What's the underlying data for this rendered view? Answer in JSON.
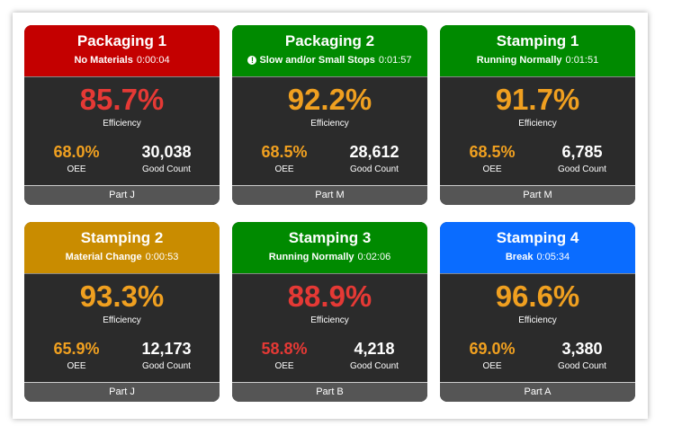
{
  "labels": {
    "efficiency": "Efficiency",
    "oee": "OEE",
    "good_count": "Good Count"
  },
  "cards": [
    {
      "title": "Packaging 1",
      "status": "No Materials",
      "time": "0:00:04",
      "efficiency": "85.7%",
      "oee": "68.0%",
      "good_count": "30,038",
      "part": "Part J",
      "header_color": "#c40000",
      "efficiency_color": "#e53935",
      "oee_color": "#f0a020"
    },
    {
      "title": "Packaging 2",
      "status": "Slow and/or Small Stops",
      "status_icon": "warning",
      "time": "0:01:57",
      "efficiency": "92.2%",
      "oee": "68.5%",
      "good_count": "28,612",
      "part": "Part M",
      "header_color": "#008a00",
      "efficiency_color": "#f0a020",
      "oee_color": "#f0a020"
    },
    {
      "title": "Stamping 1",
      "status": "Running Normally",
      "time": "0:01:51",
      "efficiency": "91.7%",
      "oee": "68.5%",
      "good_count": "6,785",
      "part": "Part M",
      "header_color": "#008a00",
      "efficiency_color": "#f0a020",
      "oee_color": "#f0a020"
    },
    {
      "title": "Stamping 2",
      "status": "Material Change",
      "time": "0:00:53",
      "efficiency": "93.3%",
      "oee": "65.9%",
      "good_count": "12,173",
      "part": "Part J",
      "header_color": "#c98c00",
      "efficiency_color": "#f0a020",
      "oee_color": "#f0a020"
    },
    {
      "title": "Stamping 3",
      "status": "Running Normally",
      "time": "0:02:06",
      "efficiency": "88.9%",
      "oee": "58.8%",
      "good_count": "4,218",
      "part": "Part B",
      "header_color": "#008a00",
      "efficiency_color": "#e53935",
      "oee_color": "#e53935"
    },
    {
      "title": "Stamping 4",
      "status": "Break",
      "time": "0:05:34",
      "efficiency": "96.6%",
      "oee": "69.0%",
      "good_count": "3,380",
      "part": "Part A",
      "header_color": "#0a6cff",
      "efficiency_color": "#f0a020",
      "oee_color": "#f0a020"
    }
  ]
}
